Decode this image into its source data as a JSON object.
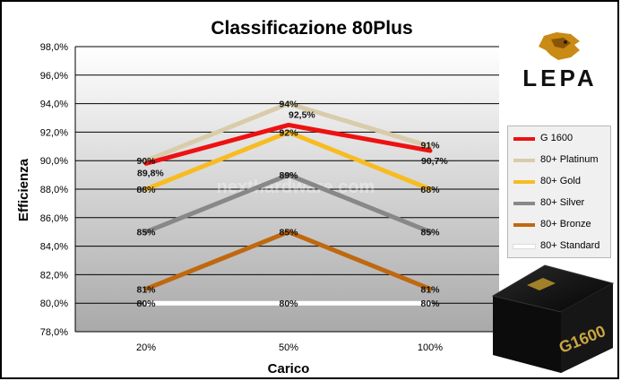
{
  "chart_data": {
    "type": "line",
    "title": "Classificazione 80Plus",
    "xlabel": "Carico",
    "ylabel": "Efficienza",
    "categories": [
      "20%",
      "50%",
      "100%"
    ],
    "ylim": [
      78,
      98
    ],
    "yticks": [
      "78,0%",
      "80,0%",
      "82,0%",
      "84,0%",
      "86,0%",
      "88,0%",
      "90,0%",
      "92,0%",
      "94,0%",
      "96,0%",
      "98,0%"
    ],
    "grid": true,
    "legend_position": "right",
    "watermark": "nexthardware.com",
    "series": [
      {
        "name": "G 1600",
        "color": "#ee1111",
        "values": [
          89.8,
          92.5,
          90.7
        ],
        "labels": [
          "89,8%",
          "92,5%",
          "90,7%"
        ]
      },
      {
        "name": "80+ Platinum",
        "color": "#d8ccaa",
        "values": [
          90,
          94,
          91
        ],
        "labels": [
          "90%",
          "94%",
          "91%"
        ]
      },
      {
        "name": "80+ Gold",
        "color": "#f7bc22",
        "values": [
          88,
          92,
          88
        ],
        "labels": [
          "88%",
          "92%",
          "88%"
        ]
      },
      {
        "name": "80+ Silver",
        "color": "#888888",
        "values": [
          85,
          89,
          85
        ],
        "labels": [
          "85%",
          "89%",
          "85%"
        ]
      },
      {
        "name": "80+ Bronze",
        "color": "#c0680f",
        "values": [
          81,
          85,
          81
        ],
        "labels": [
          "81%",
          "85%",
          "81%"
        ]
      },
      {
        "name": "80+ Standard",
        "color": "#ffffff",
        "values": [
          80,
          80,
          80
        ],
        "labels": [
          "80%",
          "80%",
          "80%"
        ]
      }
    ]
  },
  "branding": {
    "logo_text": "LEPA",
    "product_text": "G1600"
  }
}
